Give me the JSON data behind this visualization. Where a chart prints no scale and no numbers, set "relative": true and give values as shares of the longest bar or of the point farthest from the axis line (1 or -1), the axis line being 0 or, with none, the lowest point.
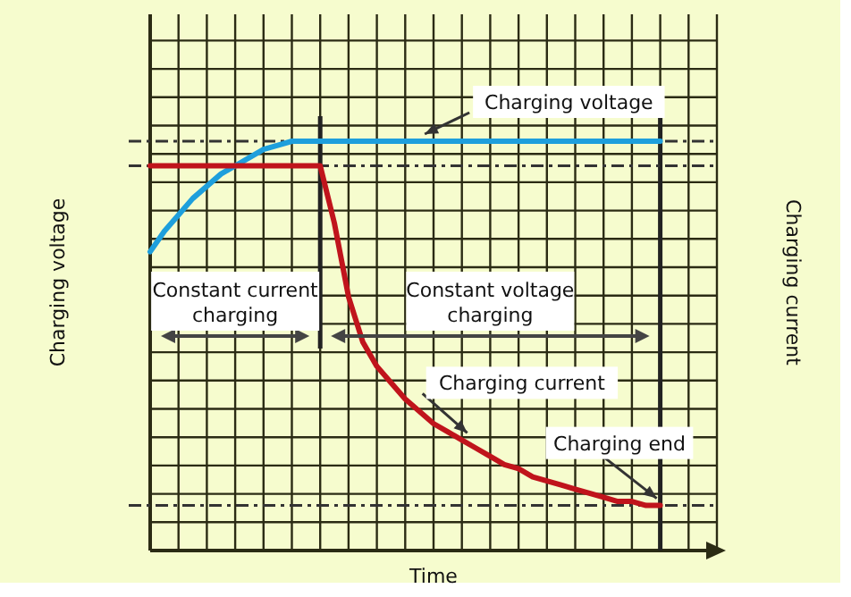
{
  "chart_data": {
    "type": "line",
    "relative": true,
    "xlabel": "Time",
    "ylabel": "Charging voltage",
    "y2label": "Charging current",
    "categories": [
      null,
      null,
      null,
      null,
      null,
      null,
      null,
      null,
      null,
      null,
      null,
      null,
      null,
      null,
      null,
      null,
      null,
      null,
      null,
      null,
      null,
      null,
      null,
      null,
      null,
      null,
      null,
      null,
      null,
      null,
      null,
      null,
      null,
      null,
      null,
      null,
      null,
      null,
      null,
      null,
      null
    ],
    "grid": true,
    "line_style": "solid",
    "series": [
      {
        "color": "#1e9fdc",
        "values": [
          0.73,
          0.78,
          0.82,
          0.86,
          0.89,
          0.92,
          0.94,
          0.96,
          0.98,
          0.99,
          1,
          1,
          1,
          1,
          1,
          1,
          1,
          1,
          1,
          1,
          1,
          1,
          1,
          1,
          1,
          1,
          1,
          1,
          1,
          1,
          1,
          1,
          1,
          1,
          1,
          1,
          1,
          null,
          null,
          null,
          null
        ]
      },
      {
        "color": "#c0141c",
        "values": [
          0.94,
          0.94,
          0.94,
          0.94,
          0.94,
          0.94,
          0.94,
          0.94,
          0.94,
          0.94,
          0.94,
          0.94,
          0.94,
          0.8,
          0.62,
          0.51,
          0.45,
          0.41,
          0.37,
          0.34,
          0.31,
          0.29,
          0.27,
          0.25,
          0.23,
          0.21,
          0.2,
          0.18,
          0.17,
          0.16,
          0.15,
          0.14,
          0.13,
          0.12,
          0.12,
          0.11,
          0.11,
          null,
          null,
          null,
          null
        ]
      }
    ],
    "ref_lines": [
      {
        "axis": "y",
        "value": 1,
        "color": "#333333",
        "line_style": "dashed"
      },
      {
        "axis": "y",
        "value": 0.94,
        "color": "#333333",
        "line_style": "dashed"
      },
      {
        "axis": "y",
        "value": 0.11,
        "color": "#333333",
        "line_style": "dashed"
      }
    ],
    "annotations": [
      "Charging voltage",
      "Charging current",
      "Charging end",
      "Constant current charging",
      "Constant voltage charging"
    ]
  }
}
